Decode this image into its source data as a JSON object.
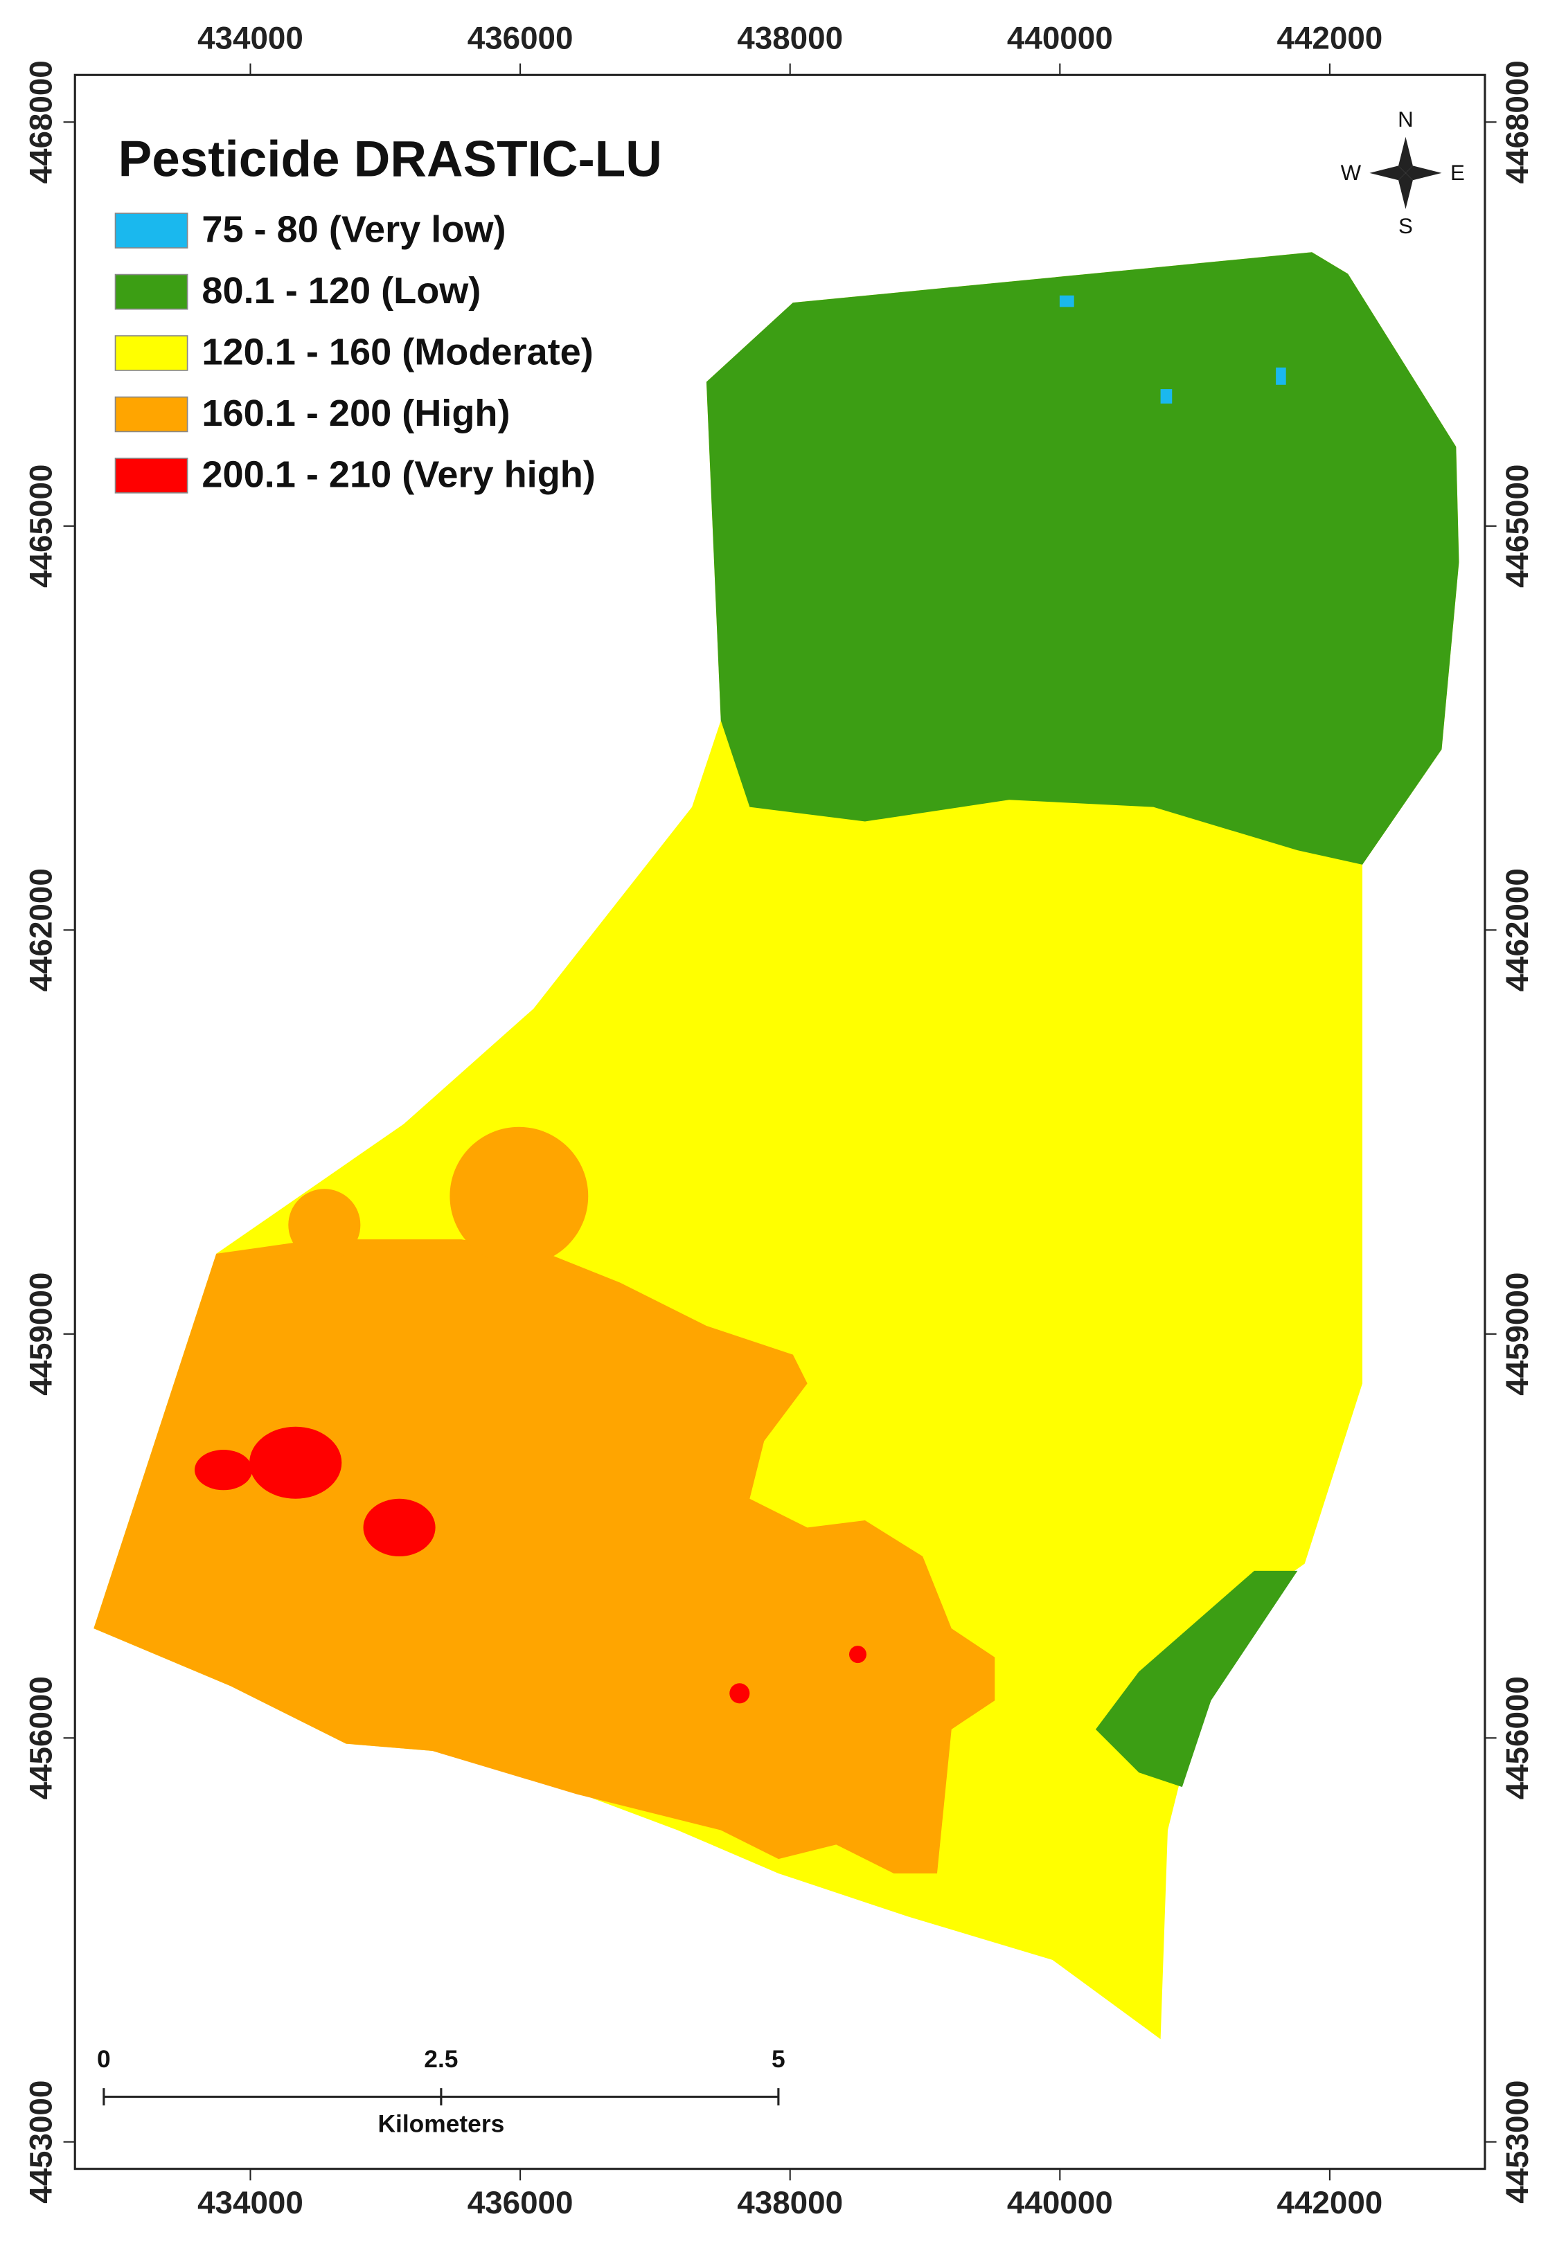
{
  "title": "Pesticide DRASTIC-LU",
  "legend": [
    {
      "label": "75 - 80 (Very low)",
      "color": "#1ab8ee"
    },
    {
      "label": "80.1 - 120 (Low)",
      "color": "#3c9e14"
    },
    {
      "label": "120.1 - 160 (Moderate)",
      "color": "#ffff00"
    },
    {
      "label": "160.1 - 200 (High)",
      "color": "#ffa500"
    },
    {
      "label": "200.1 - 210 (Very high)",
      "color": "#ff0000"
    }
  ],
  "map": {
    "xlim": [
      432700,
      443150
    ],
    "ylim": [
      4452800,
      4468350
    ],
    "xticks": [
      434000,
      436000,
      438000,
      440000,
      442000
    ],
    "yticks": [
      4453000,
      4456000,
      4459000,
      4462000,
      4465000,
      4468000
    ]
  },
  "scale_bar": {
    "ticks": [
      0,
      2.5,
      5
    ],
    "unit": "Kilometers"
  },
  "compass": {
    "n": "N",
    "s": "S",
    "e": "E",
    "w": "W"
  }
}
